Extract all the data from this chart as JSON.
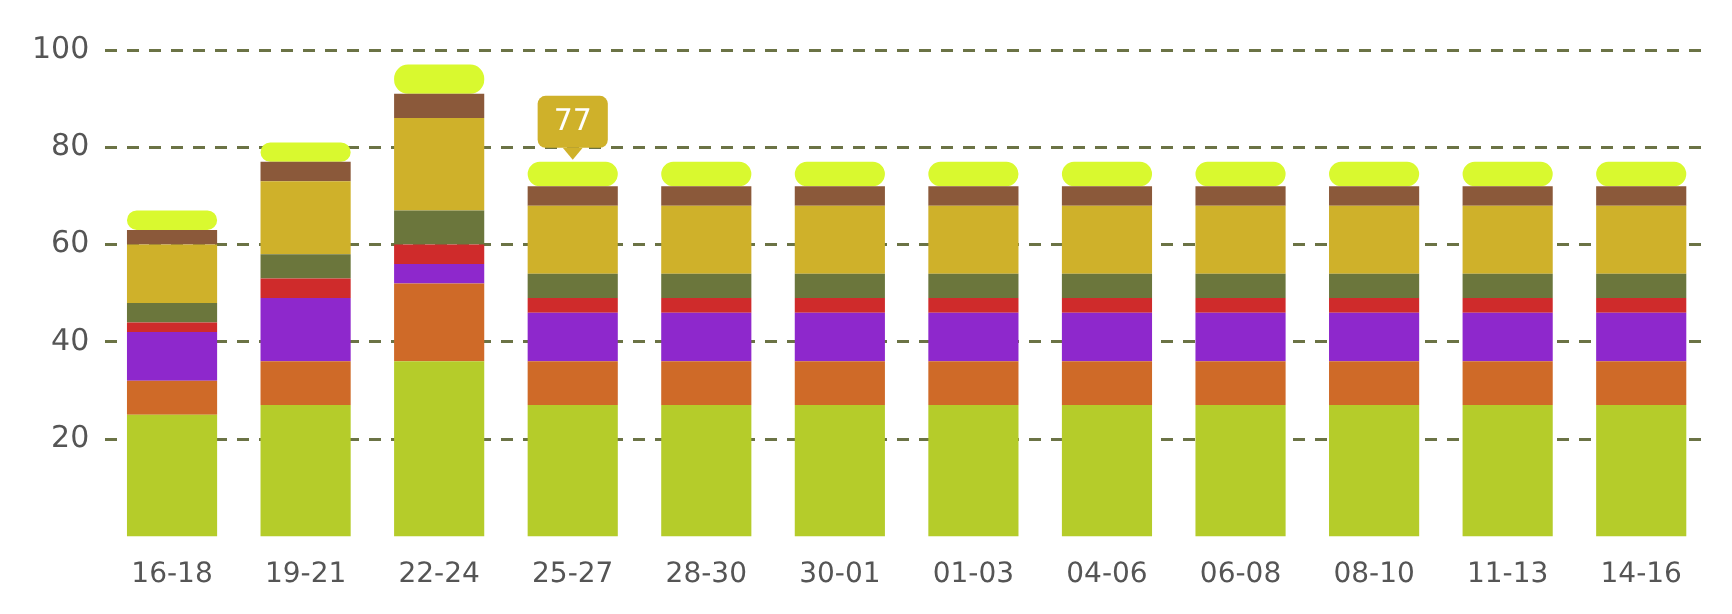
{
  "chart_data": {
    "type": "bar",
    "stacked": true,
    "categories": [
      "16-18",
      "19-21",
      "22-24",
      "25-27",
      "28-30",
      "30-01",
      "01-03",
      "04-06",
      "06-08",
      "08-10",
      "11-13",
      "14-16"
    ],
    "series": [
      {
        "color": "#b5cc2a",
        "values": [
          25,
          27,
          36,
          27,
          27,
          27,
          27,
          27,
          27,
          27,
          27,
          27
        ]
      },
      {
        "color": "#cf6a28",
        "values": [
          7,
          9,
          16,
          9,
          9,
          9,
          9,
          9,
          9,
          9,
          9,
          9
        ]
      },
      {
        "color": "#8e28cc",
        "values": [
          10,
          13,
          4,
          10,
          10,
          10,
          10,
          10,
          10,
          10,
          10,
          10
        ]
      },
      {
        "color": "#cf2b2b",
        "values": [
          2,
          4,
          4,
          3,
          3,
          3,
          3,
          3,
          3,
          3,
          3,
          3
        ]
      },
      {
        "color": "#6b763c",
        "values": [
          4,
          5,
          7,
          5,
          5,
          5,
          5,
          5,
          5,
          5,
          5,
          5
        ]
      },
      {
        "color": "#cfb12a",
        "values": [
          12,
          15,
          19,
          14,
          14,
          14,
          14,
          14,
          14,
          14,
          14,
          14
        ]
      },
      {
        "color": "#8b593a",
        "values": [
          3,
          4,
          5,
          4,
          4,
          4,
          4,
          4,
          4,
          4,
          4,
          4
        ]
      },
      {
        "color": "#d9f92f",
        "values": [
          4,
          4,
          6,
          5,
          5,
          5,
          5,
          5,
          5,
          5,
          5,
          5
        ]
      }
    ],
    "ylim": [
      0,
      100
    ],
    "yticks": [
      20,
      40,
      60,
      80,
      100
    ],
    "grid": "y",
    "legend": false,
    "annotations": [
      {
        "text": "77",
        "x": "25-27",
        "y": 77
      }
    ]
  }
}
